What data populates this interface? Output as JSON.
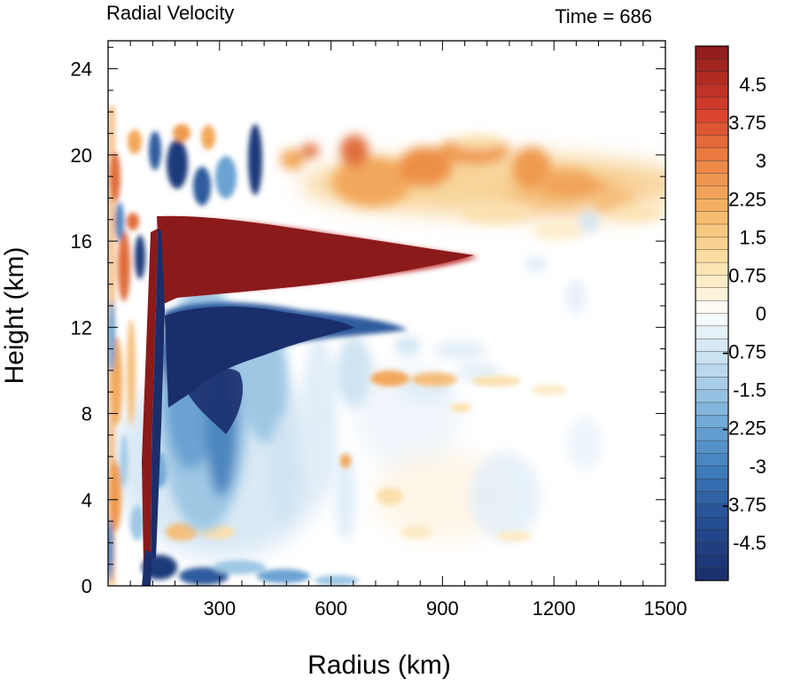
{
  "chart_data": {
    "type": "heatmap",
    "title_left": "Radial Velocity",
    "title_right": "Time = 686",
    "xlabel": "Radius (km)",
    "ylabel": "Height (km)",
    "xlim": [
      0,
      1500
    ],
    "ylim": [
      0,
      25.3
    ],
    "xticks": [
      300,
      600,
      900,
      1200,
      1500
    ],
    "xtick_labels": [
      "300",
      "600",
      "900",
      "1200",
      "1500"
    ],
    "yticks": [
      0,
      4,
      8,
      12,
      16,
      20,
      24
    ],
    "ytick_labels": [
      "0",
      "4",
      "8",
      "12",
      "16",
      "20",
      "24"
    ],
    "colorbar": {
      "min": -5.25,
      "max": 5.25,
      "step": 0.25,
      "labels": [
        "4.5",
        "3.75",
        "3",
        "2.25",
        "1.5",
        "0.75",
        "0",
        "-0.75",
        "-1.5",
        "-2.25",
        "-3",
        "-3.75",
        "-4.5"
      ],
      "label_values": [
        4.5,
        3.75,
        3,
        2.25,
        1.5,
        0.75,
        0,
        -0.75,
        -1.5,
        -2.25,
        -3,
        -3.75,
        -4.5
      ]
    },
    "features": [
      {
        "r": [
          130,
          1030
        ],
        "z": [
          12.8,
          17.2
        ],
        "v": 5.25
      },
      {
        "r": [
          140,
          550
        ],
        "z": [
          10.8,
          12.8
        ],
        "v": -5.25
      },
      {
        "r": [
          130,
          380
        ],
        "z": [
          2,
          10.5
        ],
        "v": -3.5
      },
      {
        "r": [
          380,
          1500
        ],
        "z": [
          16.8,
          21
        ],
        "v": 2.5
      },
      {
        "r": [
          0,
          130
        ],
        "z": [
          0,
          21
        ],
        "v": 1.75
      },
      {
        "r": [
          450,
          720
        ],
        "z": [
          9.3,
          10
        ],
        "v": 1.75
      }
    ],
    "colors": {
      "negative_max": "#1a2e6b",
      "zero": "#ffffff",
      "positive_max": "#8b1a1a"
    }
  }
}
